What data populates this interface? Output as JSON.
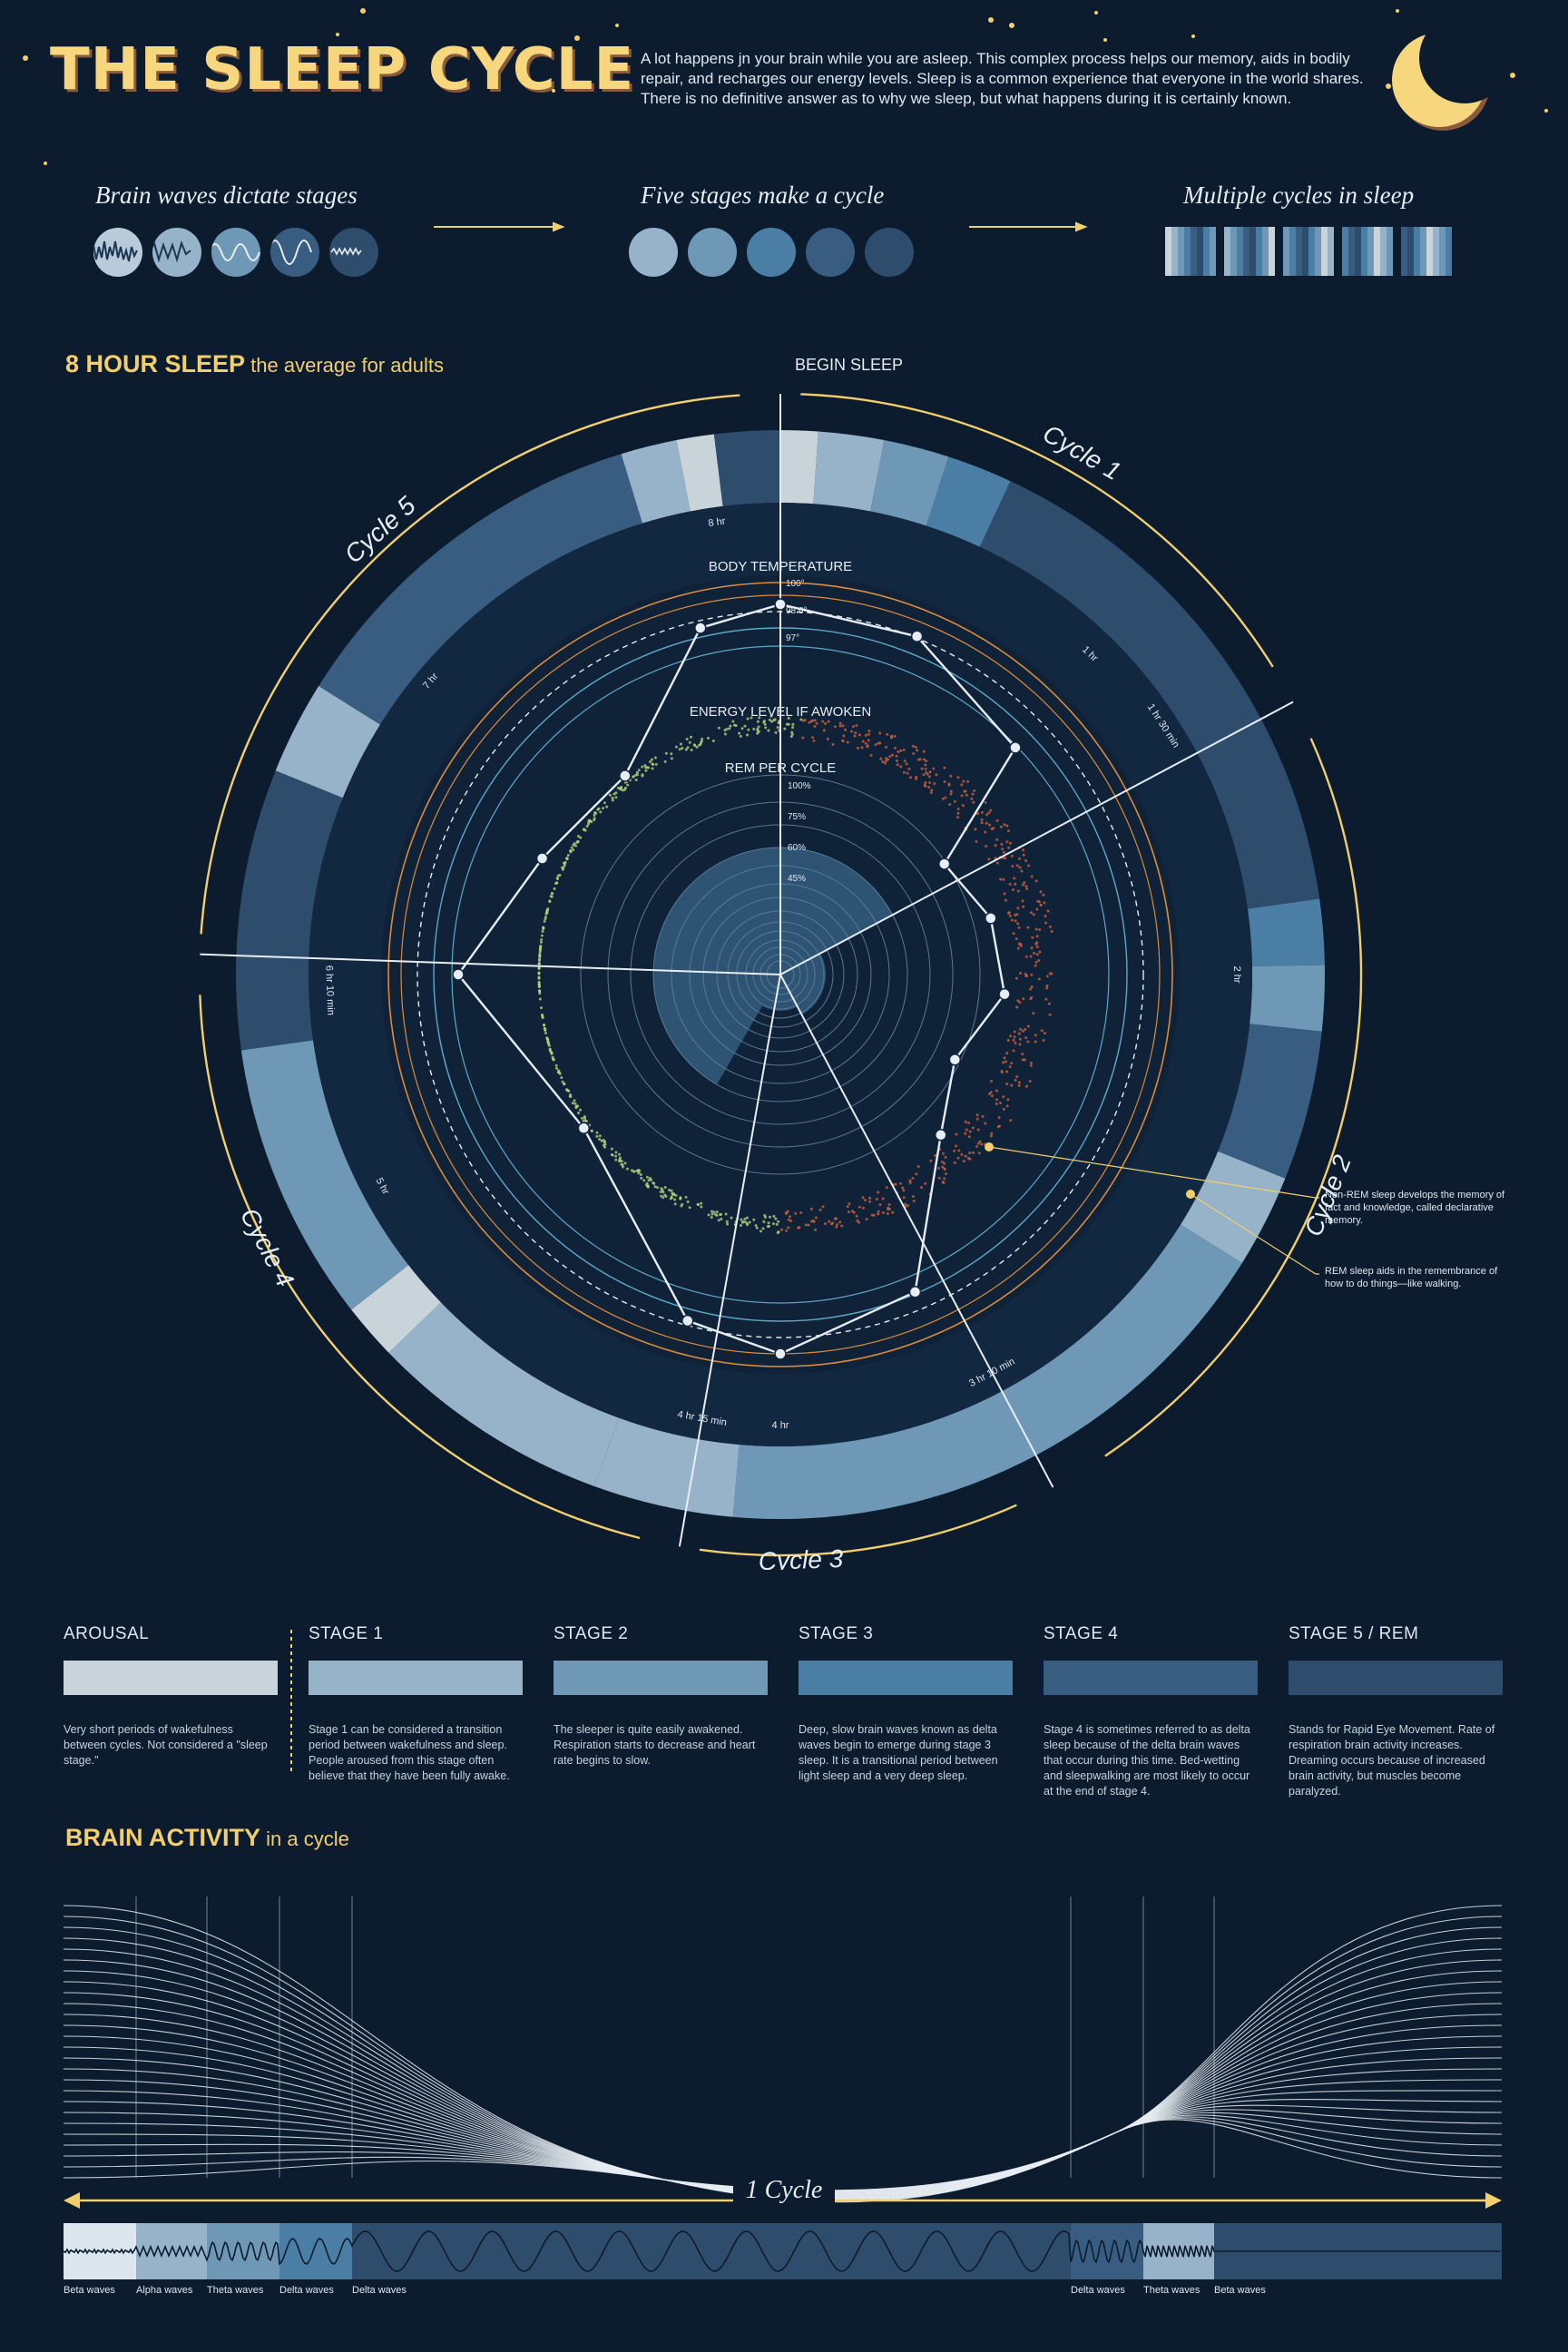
{
  "header": {
    "title": "THE SLEEP CYCLE",
    "intro": "A lot happens jn your brain while you are asleep. This complex process helps our memory, aids in bodily repair, and recharges our energy levels. Sleep is a common experience that everyone in the world shares. There is no definitive answer as to why we sleep, but what happens during it is certainly known."
  },
  "overview": {
    "brain_waves": "Brain waves dictate stages",
    "five_stages": "Five stages make a cycle",
    "multiple_cycles": "Multiple cycles in sleep"
  },
  "eight_hour": {
    "title_bold": "8 HOUR SLEEP",
    "title_rest": " the average for adults",
    "begin": "BEGIN SLEEP",
    "body_temp": "BODY TEMPERATURE",
    "energy": "ENERGY LEVEL IF AWOKEN",
    "rem": "REM PER CYCLE",
    "temp_ticks": [
      "100°",
      "98.6°",
      "97°"
    ],
    "rem_ticks": [
      "100%",
      "75%",
      "60%",
      "45%"
    ],
    "cycles": [
      "Cycle 1",
      "Cycle 2",
      "Cycle 3",
      "Cycle 4",
      "Cycle 5"
    ],
    "time_ticks": [
      "1 hr",
      "1 hr 30 min",
      "2 hr",
      "3 hr 10 min",
      "4 hr",
      "4 hr 15 min",
      "5 hr",
      "6 hr 10 min",
      "7 hr",
      "8 hr"
    ],
    "annotation_nonrem": "Non-REM sleep develops the memory of fact and knowledge, called declarative memory.",
    "annotation_rem": "REM sleep aids in the remembrance of how to do things—like walking."
  },
  "stages": [
    {
      "name": "AROUSAL",
      "color": "#c9d3da",
      "desc": "Very short periods of wakefulness between cycles. Not considered a \"sleep stage.\""
    },
    {
      "name": "STAGE 1",
      "color": "#97b3c9",
      "desc": "Stage 1 can be considered a transition period between wakefulness and sleep. People aroused from this stage often believe that they have been fully awake."
    },
    {
      "name": "STAGE 2",
      "color": "#6f98b7",
      "desc": "The sleeper is quite easily awakened. Respiration starts to decrease and heart rate begins to slow."
    },
    {
      "name": "STAGE 3",
      "color": "#4a7ea4",
      "desc": "Deep, slow brain waves known as delta waves begin to emerge during stage 3 sleep. It is a transitional period between light sleep and a very deep sleep."
    },
    {
      "name": "STAGE 4",
      "color": "#385d80",
      "desc": "Stage 4 is sometimes referred to as delta sleep because of the delta brain waves that occur during this time. Bed-wetting and sleepwalking are most likely to occur at the end of stage 4."
    },
    {
      "name": "STAGE 5 / REM",
      "color": "#2e4d6c",
      "desc": "Stands for Rapid Eye Movement. Rate of respiration brain activity increases. Dreaming occurs because of increased brain activity, but muscles become paralyzed."
    }
  ],
  "brain_activity": {
    "title_bold": "BRAIN ACTIVITY",
    "title_rest": " in a cycle",
    "cycle_label": "1 Cycle",
    "wave_labels": [
      "Beta waves",
      "Alpha waves",
      "Theta waves",
      "Delta waves",
      "Delta waves",
      "Delta waves",
      "Theta waves",
      "Beta waves"
    ]
  },
  "colors": {
    "background": "#0c1b2e",
    "accent": "#f2cf6d",
    "orange_ring": "#d98b3f",
    "green_dots": "#b5cf7a",
    "red_dots": "#c9603f"
  }
}
